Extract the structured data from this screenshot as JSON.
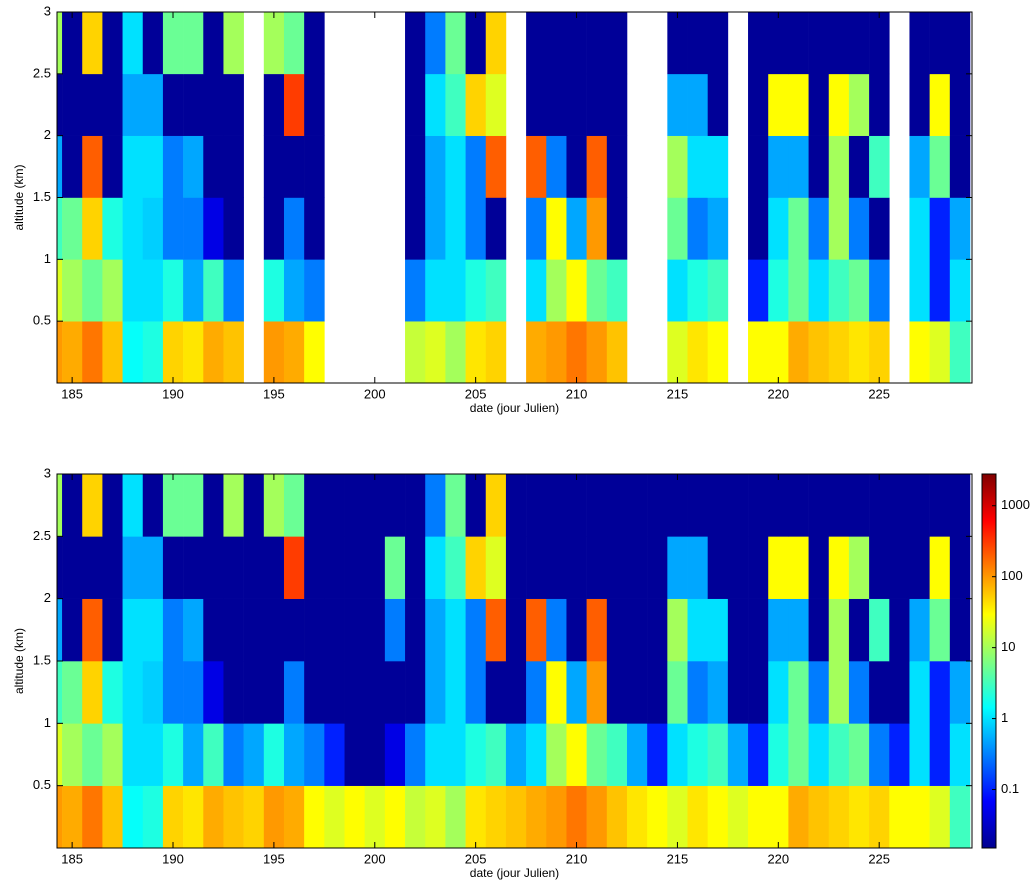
{
  "chart_data": [
    {
      "type": "heatmap",
      "xlabel": "date (jour Julien)",
      "ylabel": "altitude (km)",
      "x": [
        184,
        185,
        186,
        187,
        188,
        189,
        190,
        191,
        192,
        193,
        194,
        195,
        196,
        197,
        198,
        199,
        200,
        201,
        202,
        203,
        204,
        205,
        206,
        207,
        208,
        209,
        210,
        211,
        212,
        213,
        214,
        215,
        216,
        217,
        218,
        219,
        220,
        221,
        222,
        223,
        224,
        225,
        226,
        227,
        228,
        229
      ],
      "y": [
        0.25,
        0.75,
        1.25,
        1.75,
        2.25,
        2.75
      ],
      "z": [
        [
          100,
          80,
          150,
          60,
          1.5,
          2,
          50,
          40,
          80,
          60,
          null,
          100,
          80,
          30,
          null,
          null,
          null,
          null,
          15,
          20,
          10,
          40,
          50,
          null,
          80,
          100,
          150,
          100,
          60,
          null,
          null,
          20,
          40,
          30,
          null,
          30,
          30,
          80,
          60,
          50,
          40,
          50,
          null,
          30,
          20,
          3
        ],
        [
          20,
          10,
          5,
          10,
          1,
          1,
          2,
          0.5,
          3,
          0.3,
          null,
          2,
          0.5,
          0.3,
          null,
          null,
          null,
          null,
          0.3,
          1,
          1,
          2,
          3,
          null,
          1,
          10,
          30,
          5,
          3,
          null,
          null,
          1,
          2,
          3,
          null,
          0.1,
          2,
          5,
          1,
          3,
          5,
          0.3,
          null,
          1,
          0.1,
          1
        ],
        [
          3,
          5,
          50,
          2,
          1,
          0.8,
          0.3,
          0.3,
          0.05,
          0.02,
          null,
          0.02,
          0.3,
          0.02,
          null,
          null,
          null,
          null,
          0.02,
          0.5,
          1,
          0.3,
          0.02,
          null,
          0.3,
          30,
          0.5,
          100,
          0.02,
          null,
          null,
          5,
          0.3,
          0.5,
          null,
          0.02,
          1,
          5,
          0.3,
          10,
          0.3,
          0.02,
          null,
          1,
          0.1,
          0.5
        ],
        [
          0.5,
          0.02,
          200,
          0.02,
          1,
          1,
          0.3,
          0.5,
          0.02,
          0.02,
          null,
          0.02,
          0.02,
          0.02,
          null,
          null,
          null,
          null,
          0.02,
          0.5,
          1,
          0.3,
          200,
          null,
          200,
          0.3,
          0.02,
          200,
          0.02,
          null,
          null,
          10,
          1,
          1,
          null,
          0.02,
          0.5,
          0.5,
          0.02,
          10,
          0.02,
          3,
          null,
          0.5,
          5,
          0.02
        ],
        [
          0.02,
          0.02,
          0.02,
          0.02,
          0.5,
          0.5,
          0.02,
          0.02,
          0.02,
          0.02,
          null,
          0.02,
          300,
          0.02,
          null,
          null,
          null,
          null,
          0.02,
          1,
          3,
          50,
          20,
          null,
          0.02,
          0.02,
          0.02,
          0.02,
          0.02,
          null,
          null,
          0.5,
          0.5,
          0.02,
          null,
          0.02,
          30,
          30,
          0.02,
          30,
          10,
          0.02,
          null,
          0.02,
          30,
          0.02
        ],
        [
          10,
          0.02,
          50,
          0.02,
          1,
          0.02,
          5,
          5,
          0.02,
          10,
          null,
          10,
          5,
          0.02,
          null,
          null,
          null,
          null,
          0.02,
          0.3,
          5,
          0.02,
          50,
          null,
          0.02,
          0.02,
          0.02,
          0.02,
          0.02,
          null,
          null,
          0.02,
          0.02,
          0.02,
          null,
          0.02,
          0.02,
          0.02,
          0.02,
          0.02,
          0.02,
          0.02,
          null,
          0.02,
          0.02,
          0.02
        ]
      ],
      "xlim": [
        184.25,
        229.6
      ],
      "ylim": [
        0,
        3
      ],
      "xticks": [
        185,
        190,
        195,
        200,
        205,
        210,
        215,
        220,
        225
      ],
      "yticks": [
        0.5,
        1,
        1.5,
        2,
        2.5,
        3
      ]
    },
    {
      "type": "heatmap",
      "xlabel": "date (jour Julien)",
      "ylabel": "altitude (km)",
      "x": [
        184,
        185,
        186,
        187,
        188,
        189,
        190,
        191,
        192,
        193,
        194,
        195,
        196,
        197,
        198,
        199,
        200,
        201,
        202,
        203,
        204,
        205,
        206,
        207,
        208,
        209,
        210,
        211,
        212,
        213,
        214,
        215,
        216,
        217,
        218,
        219,
        220,
        221,
        222,
        223,
        224,
        225,
        226,
        227,
        228,
        229
      ],
      "y": [
        0.25,
        0.75,
        1.25,
        1.75,
        2.25,
        2.75
      ],
      "z": [
        [
          100,
          80,
          150,
          60,
          1.5,
          2,
          50,
          40,
          80,
          60,
          50,
          100,
          80,
          30,
          20,
          30,
          20,
          30,
          15,
          20,
          10,
          40,
          50,
          60,
          80,
          100,
          150,
          100,
          60,
          40,
          30,
          20,
          40,
          30,
          20,
          30,
          30,
          80,
          60,
          50,
          40,
          50,
          30,
          30,
          20,
          3
        ],
        [
          20,
          10,
          5,
          10,
          1,
          1,
          2,
          0.5,
          3,
          0.3,
          0.5,
          2,
          0.5,
          0.3,
          0.1,
          0.02,
          0.02,
          0.05,
          0.3,
          1,
          1,
          2,
          3,
          0.5,
          1,
          10,
          30,
          5,
          3,
          0.5,
          0.1,
          1,
          2,
          3,
          0.5,
          0.1,
          2,
          5,
          1,
          3,
          5,
          0.3,
          0.1,
          1,
          0.1,
          1
        ],
        [
          3,
          5,
          50,
          2,
          1,
          0.8,
          0.3,
          0.3,
          0.05,
          0.02,
          0.02,
          0.02,
          0.3,
          0.02,
          0.02,
          0.02,
          0.02,
          0.02,
          0.02,
          0.5,
          1,
          0.3,
          0.02,
          0.02,
          0.3,
          30,
          0.5,
          100,
          0.02,
          0.02,
          0.02,
          5,
          0.3,
          0.5,
          0.02,
          0.02,
          1,
          5,
          0.3,
          10,
          0.3,
          0.02,
          0.02,
          1,
          0.1,
          0.5
        ],
        [
          0.5,
          0.02,
          200,
          0.02,
          1,
          1,
          0.3,
          0.5,
          0.02,
          0.02,
          0.02,
          0.02,
          0.02,
          0.02,
          0.02,
          0.02,
          0.02,
          0.3,
          0.02,
          0.5,
          1,
          0.3,
          200,
          0.02,
          200,
          0.3,
          0.02,
          200,
          0.02,
          0.02,
          0.02,
          10,
          1,
          1,
          0.02,
          0.02,
          0.5,
          0.5,
          0.02,
          10,
          0.02,
          3,
          0.02,
          0.5,
          5,
          0.02
        ],
        [
          0.02,
          0.02,
          0.02,
          0.02,
          0.5,
          0.5,
          0.02,
          0.02,
          0.02,
          0.02,
          0.02,
          0.02,
          300,
          0.02,
          0.02,
          0.02,
          0.02,
          5,
          0.02,
          1,
          3,
          50,
          20,
          0.02,
          0.02,
          0.02,
          0.02,
          0.02,
          0.02,
          0.02,
          0.02,
          0.5,
          0.5,
          0.02,
          0.02,
          0.02,
          30,
          30,
          0.02,
          30,
          10,
          0.02,
          0.02,
          0.02,
          30,
          0.02
        ],
        [
          10,
          0.02,
          50,
          0.02,
          1,
          0.02,
          5,
          5,
          0.02,
          10,
          0.02,
          10,
          5,
          0.02,
          0.02,
          0.02,
          0.02,
          0.02,
          0.02,
          0.3,
          5,
          0.02,
          50,
          0.02,
          0.02,
          0.02,
          0.02,
          0.02,
          0.02,
          0.02,
          0.02,
          0.02,
          0.02,
          0.02,
          0.02,
          0.02,
          0.02,
          0.02,
          0.02,
          0.02,
          0.02,
          0.02,
          0.02,
          0.02,
          0.02,
          0.02
        ]
      ],
      "xlim": [
        184.25,
        229.6
      ],
      "ylim": [
        0,
        3
      ],
      "xticks": [
        185,
        190,
        195,
        200,
        205,
        210,
        215,
        220,
        225
      ],
      "yticks": [
        0.5,
        1,
        1.5,
        2,
        2.5,
        3
      ],
      "colorbar": {
        "lim": [
          0.015,
          2800
        ],
        "ticks": [
          0.1,
          1,
          10,
          100,
          1000
        ],
        "log": true
      }
    }
  ]
}
